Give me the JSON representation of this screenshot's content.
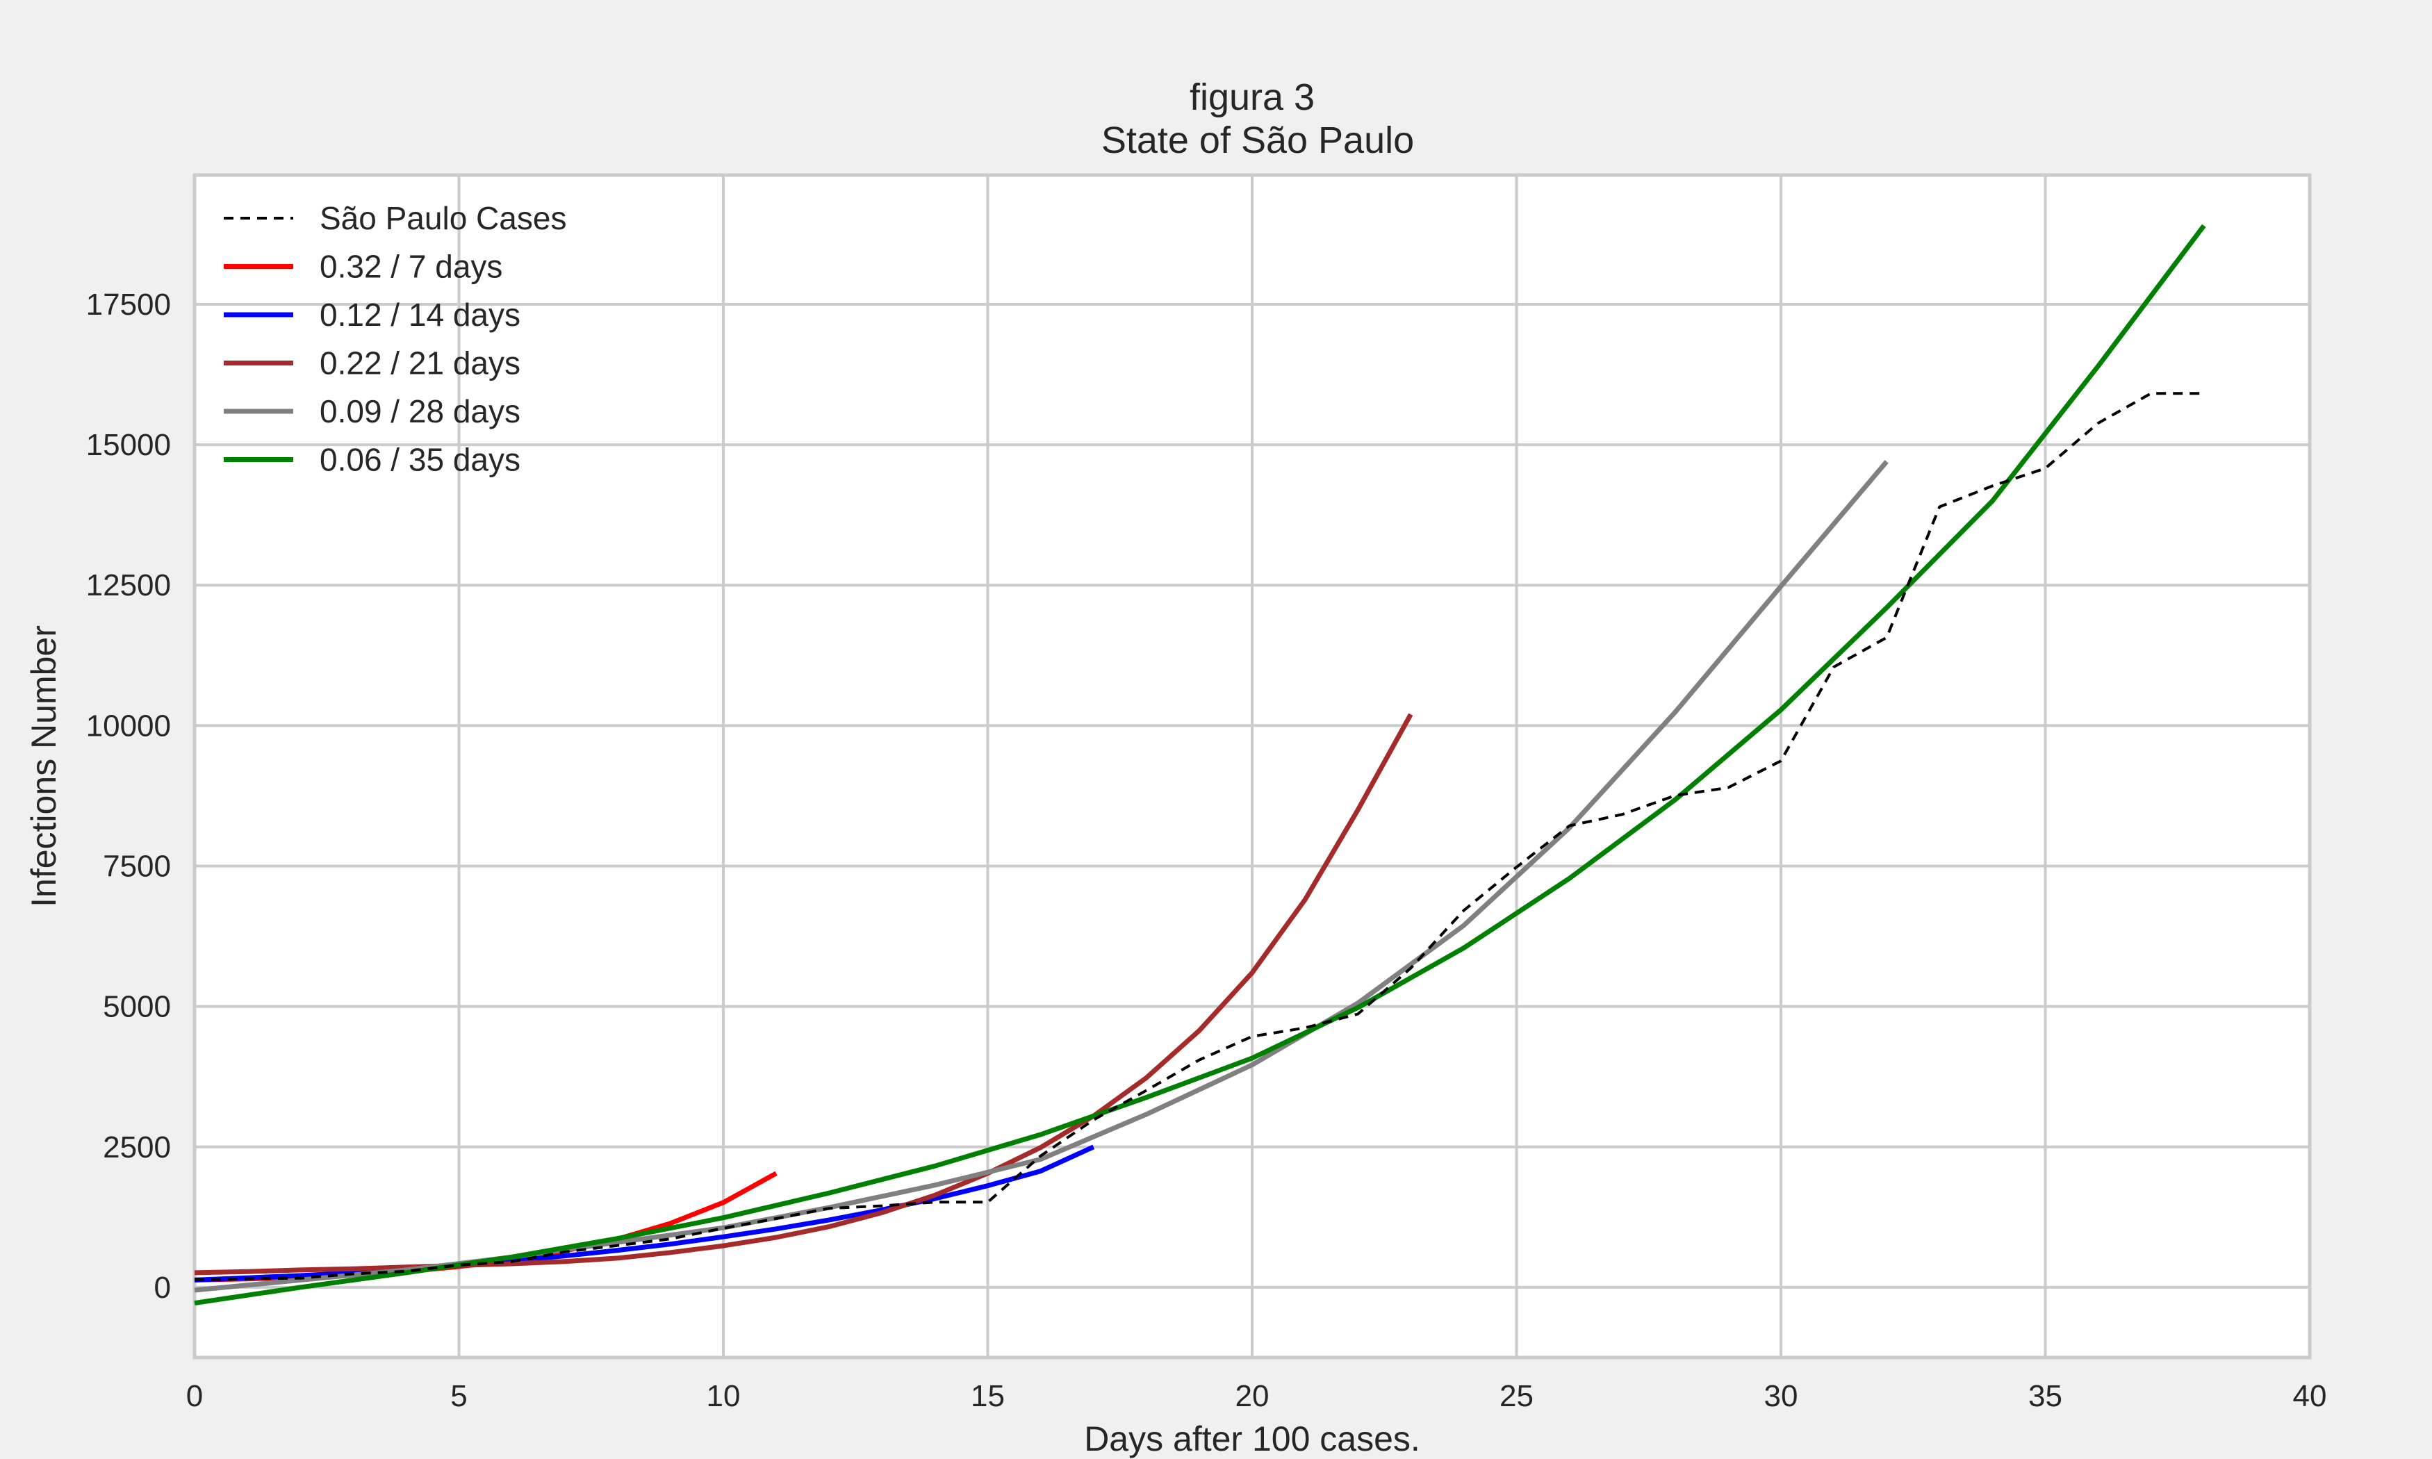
{
  "chart_data": {
    "type": "line",
    "title": "figura 3",
    "subtitle": "State of São Paulo",
    "xlabel": "Days after 100 cases.",
    "ylabel": "Infections Number",
    "xlim": [
      0,
      40
    ],
    "ylim": [
      -1250,
      19800
    ],
    "x_ticks": [
      0,
      5,
      10,
      15,
      20,
      25,
      30,
      35,
      40
    ],
    "y_ticks": [
      0,
      2500,
      5000,
      7500,
      10000,
      12500,
      15000,
      17500
    ],
    "grid": true,
    "legend_position": "top-left",
    "series": [
      {
        "name": "São Paulo Cases",
        "color": "#000000",
        "style": "dashed",
        "x": [
          0,
          1,
          2,
          3,
          4,
          5,
          6,
          7,
          8,
          9,
          10,
          11,
          12,
          13,
          14,
          15,
          16,
          17,
          18,
          19,
          20,
          21,
          22,
          23,
          24,
          25,
          26,
          27,
          28,
          29,
          30,
          31,
          32,
          33,
          34,
          35,
          36,
          37,
          38
        ],
        "y": [
          136,
          152,
          164,
          240,
          286,
          396,
          459,
          631,
          745,
          862,
          1052,
          1223,
          1406,
          1451,
          1517,
          1517,
          2339,
          2981,
          3506,
          4048,
          4466,
          4620,
          4866,
          5682,
          6708,
          7480,
          8216,
          8419,
          8755,
          8895,
          9371,
          11043,
          11568,
          13894,
          14267,
          14580,
          15385,
          15914,
          15914
        ]
      },
      {
        "name": "0.32 / 7 days",
        "color": "#ff0000",
        "style": "solid",
        "x": [
          0,
          1,
          2,
          3,
          4,
          5,
          6,
          7,
          8,
          9,
          10,
          11
        ],
        "y": [
          130,
          150,
          180,
          220,
          280,
          370,
          480,
          650,
          860,
          1140,
          1510,
          2030
        ]
      },
      {
        "name": "0.12 / 14 days",
        "color": "#0000ff",
        "style": "solid",
        "x": [
          0,
          1,
          2,
          3,
          4,
          5,
          6,
          7,
          8,
          9,
          10,
          11,
          12,
          13,
          14,
          15,
          16,
          17
        ],
        "y": [
          130,
          170,
          210,
          260,
          320,
          390,
          470,
          560,
          660,
          770,
          900,
          1040,
          1200,
          1380,
          1580,
          1810,
          2070,
          2500
        ]
      },
      {
        "name": "0.22 / 21 days",
        "color": "#a52a2a",
        "style": "solid",
        "x": [
          0,
          1,
          2,
          3,
          4,
          5,
          6,
          7,
          8,
          9,
          10,
          11,
          12,
          13,
          14,
          15,
          16,
          17,
          18,
          19,
          20,
          21,
          22,
          23
        ],
        "y": [
          260,
          280,
          310,
          330,
          360,
          390,
          420,
          460,
          520,
          620,
          740,
          890,
          1080,
          1330,
          1640,
          2030,
          2490,
          3050,
          3730,
          4570,
          5600,
          6900,
          8500,
          10200
        ]
      },
      {
        "name": "0.09 / 28 days",
        "color": "#808080",
        "style": "solid",
        "x": [
          0,
          2,
          4,
          6,
          8,
          10,
          12,
          14,
          16,
          18,
          20,
          22,
          24,
          26,
          28,
          30,
          32
        ],
        "y": [
          -50,
          130,
          310,
          540,
          800,
          1060,
          1420,
          1820,
          2280,
          3080,
          3960,
          5060,
          6440,
          8180,
          10240,
          12480,
          14700
        ]
      },
      {
        "name": "0.06 / 35 days",
        "color": "#008000",
        "style": "solid",
        "x": [
          0,
          2,
          4,
          6,
          8,
          10,
          12,
          14,
          16,
          18,
          20,
          22,
          24,
          26,
          28,
          30,
          32,
          34,
          36,
          38
        ],
        "y": [
          -280,
          0,
          260,
          540,
          870,
          1240,
          1680,
          2160,
          2720,
          3380,
          4080,
          4980,
          6040,
          7280,
          8680,
          10280,
          12100,
          14000,
          16400,
          18900
        ]
      }
    ]
  }
}
